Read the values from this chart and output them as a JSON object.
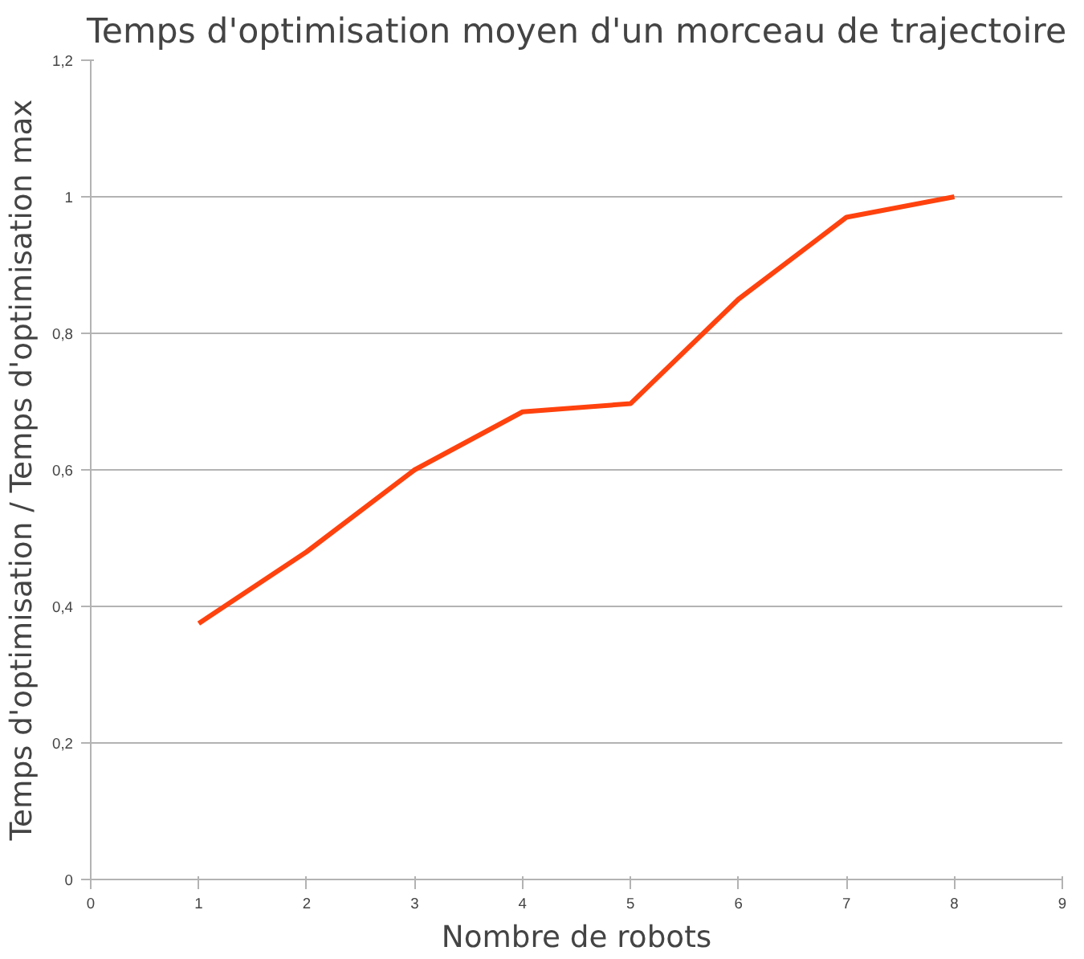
{
  "chart_data": {
    "type": "line",
    "title": "Temps d'optimisation moyen d'un morceau de trajectoire",
    "xlabel": "Nombre de robots",
    "ylabel": "Temps d'optimisation / Temps d'optimisation max",
    "x": [
      1,
      2,
      3,
      4,
      5,
      6,
      7,
      8
    ],
    "series": [
      {
        "color": "#ff420e",
        "values": [
          0.375,
          0.48,
          0.6,
          0.685,
          0.697,
          0.85,
          0.97,
          1.0
        ]
      }
    ],
    "xlim": [
      0,
      9
    ],
    "xticks": [
      0,
      1,
      2,
      3,
      4,
      5,
      6,
      7,
      8,
      9
    ],
    "ylim": [
      0,
      1.2
    ],
    "yticks": [
      0,
      {
        "value": 0.2,
        "label": "0,2"
      },
      {
        "value": 0.4,
        "label": "0,4"
      },
      {
        "value": 0.6,
        "label": "0,6"
      },
      {
        "value": 0.8,
        "label": "0,8"
      },
      1,
      {
        "value": 1.2,
        "label": "1,2"
      }
    ],
    "grid": "y",
    "marker": "none",
    "line_style": "solid"
  }
}
